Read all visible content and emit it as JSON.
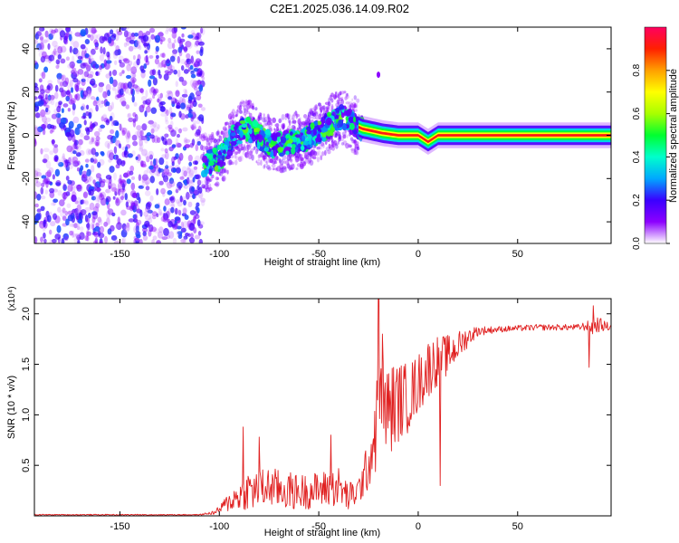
{
  "title": "C2E1.2025.036.14.09.R02",
  "colors": {
    "frame": "#000000",
    "snr_line": "#e02020",
    "background": "#ffffff"
  },
  "chart_data": [
    {
      "type": "heatmap",
      "name": "spectrogram",
      "xlabel": "Height of straight line (km)",
      "ylabel": "Frequency (Hz)",
      "xlim": [
        -193,
        97
      ],
      "ylim": [
        -50,
        50
      ],
      "xticks": [
        -150,
        -100,
        -50,
        0,
        50
      ],
      "yticks": [
        -40,
        -20,
        0,
        20,
        40
      ],
      "colorbar": {
        "label": "Normalized spectral amplitude",
        "range": [
          0,
          1
        ],
        "ticks": [
          "0.0",
          "0.2",
          "0.4",
          "0.6",
          "0.8"
        ],
        "tick_values": [
          0.0,
          0.2,
          0.4,
          0.6,
          0.8
        ],
        "colormap": [
          "#ffffff",
          "#8c00ff",
          "#3a00ff",
          "#00a8ff",
          "#00ffcc",
          "#00ff30",
          "#a8ff00",
          "#ffff00",
          "#ffa000",
          "#ff2000",
          "#ff0060"
        ]
      },
      "features": {
        "noise_region_x": [
          -193,
          -108
        ],
        "track_points": [
          {
            "x": -108,
            "y": -13
          },
          {
            "x": -103,
            "y": -12
          },
          {
            "x": -98,
            "y": -9
          },
          {
            "x": -93,
            "y": -1
          },
          {
            "x": -88,
            "y": 3
          },
          {
            "x": -83,
            "y": 2
          },
          {
            "x": -78,
            "y": -2
          },
          {
            "x": -73,
            "y": -5
          },
          {
            "x": -68,
            "y": -4
          },
          {
            "x": -63,
            "y": -3
          },
          {
            "x": -58,
            "y": -2
          },
          {
            "x": -53,
            "y": 0
          },
          {
            "x": -48,
            "y": 3
          },
          {
            "x": -43,
            "y": 6
          },
          {
            "x": -38,
            "y": 8
          },
          {
            "x": -33,
            "y": 5
          },
          {
            "x": -28,
            "y": 3
          },
          {
            "x": -23,
            "y": 2
          },
          {
            "x": -18,
            "y": 1
          },
          {
            "x": -10,
            "y": 0
          },
          {
            "x": 0,
            "y": 0
          },
          {
            "x": 5,
            "y": -3
          },
          {
            "x": 10,
            "y": 0
          },
          {
            "x": 20,
            "y": 0
          },
          {
            "x": 40,
            "y": 0
          },
          {
            "x": 60,
            "y": 0
          },
          {
            "x": 80,
            "y": 0
          },
          {
            "x": 97,
            "y": 0
          }
        ],
        "steady_tone": {
          "x_start": -30,
          "x_end": 97,
          "frequency": 0
        },
        "isolated_peak": {
          "x": -20,
          "y": 28
        }
      }
    },
    {
      "type": "line",
      "name": "snr",
      "xlabel": "Height of straight line (km)",
      "ylabel": "SNR (10 * v/v)",
      "scale_label": "(x10⁴)",
      "xlim": [
        -193,
        97
      ],
      "ylim": [
        0,
        2.15
      ],
      "xticks": [
        -150,
        -100,
        -50,
        0,
        50
      ],
      "yticks": [
        0.5,
        1.0,
        1.5,
        2.0
      ],
      "ytick_labels": [
        "0.5",
        "1.0",
        "1.5",
        "2.0"
      ],
      "envelope": {
        "x": [
          -193,
          -110,
          -102,
          -95,
          -85,
          -80,
          -75,
          -70,
          -60,
          -50,
          -40,
          -35,
          -30,
          -25,
          -22,
          -20,
          -18,
          -15,
          -12,
          -10,
          -5,
          0,
          5,
          10,
          15,
          20,
          25,
          30,
          40,
          50,
          60,
          70,
          80,
          85,
          88,
          90,
          97
        ],
        "base": [
          0.01,
          0.01,
          0.03,
          0.12,
          0.22,
          0.2,
          0.25,
          0.22,
          0.2,
          0.22,
          0.25,
          0.15,
          0.22,
          0.45,
          0.7,
          0.9,
          1.0,
          0.95,
          1.0,
          1.05,
          1.1,
          1.25,
          1.4,
          1.5,
          1.55,
          1.65,
          1.75,
          1.82,
          1.84,
          1.85,
          1.86,
          1.86,
          1.86,
          1.87,
          1.85,
          1.88,
          1.86
        ],
        "amp": [
          0.005,
          0.005,
          0.02,
          0.1,
          0.2,
          0.22,
          0.2,
          0.2,
          0.18,
          0.18,
          0.2,
          0.15,
          0.15,
          0.25,
          0.4,
          0.5,
          0.5,
          0.45,
          0.45,
          0.4,
          0.35,
          0.3,
          0.3,
          0.25,
          0.2,
          0.15,
          0.1,
          0.05,
          0.03,
          0.03,
          0.03,
          0.03,
          0.03,
          0.05,
          0.1,
          0.08,
          0.03
        ]
      },
      "spikes": [
        {
          "x": -88,
          "y": 0.88
        },
        {
          "x": -80,
          "y": 0.78
        },
        {
          "x": -44,
          "y": 0.8
        },
        {
          "x": -20,
          "y": 2.15
        },
        {
          "x": -18,
          "y": 1.8
        },
        {
          "x": 11,
          "y": 0.3
        },
        {
          "x": 86,
          "y": 1.47
        },
        {
          "x": 88,
          "y": 2.08
        }
      ]
    }
  ]
}
